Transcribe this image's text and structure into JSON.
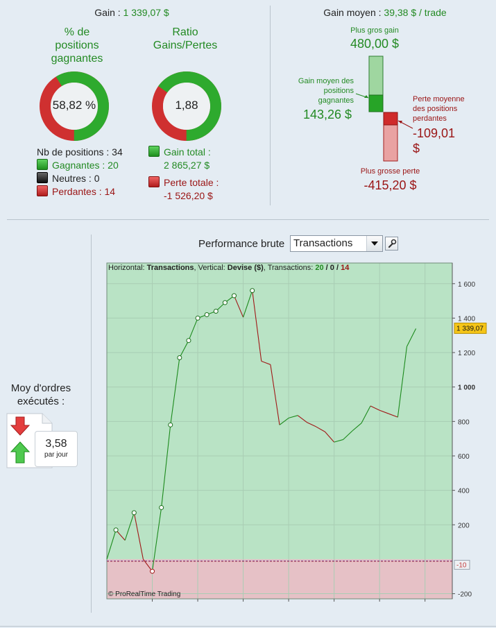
{
  "gain_label": "Gain : ",
  "gain_value": "1 339,07 $",
  "pct_title": "% de positions gagnantes",
  "pct_title_lines": [
    "% de",
    "positions",
    "gagnantes"
  ],
  "pct_value": "58,82 %",
  "pct_fraction": 0.5882,
  "ratio_title_lines": [
    "Ratio",
    "Gains/Pertes"
  ],
  "ratio_value": "1,88",
  "ratio_fraction": 0.652,
  "positions": {
    "total": "Nb de positions : 34",
    "winners": "Gagnantes : 20",
    "neutral": "Neutres : 0",
    "losers": "Perdantes : 14"
  },
  "totals": {
    "gain_label": "Gain total :",
    "gain_value": "2 865,27 $",
    "loss_label": "Perte totale :",
    "loss_value": "-1 526,20 $"
  },
  "avg": {
    "title_label": "Gain moyen : ",
    "title_value": "39,38 $ / trade",
    "max_gain_label": "Plus gros gain",
    "max_gain_value": "480,00 $",
    "avg_gain_label_lines": [
      "Gain moyen des",
      "positions",
      "gagnantes"
    ],
    "avg_gain_value": "143,26 $",
    "avg_loss_label_lines": [
      "Perte moyenne",
      "des positions",
      "perdantes"
    ],
    "avg_loss_value_lines": [
      "-109,01",
      "$"
    ],
    "max_loss_label": "Plus grosse perte",
    "max_loss_value": "-415,20 $"
  },
  "perf": {
    "title": "Performance brute",
    "select_value": "Transactions"
  },
  "moy": {
    "title_lines": [
      "Moy d'ordres",
      "exécutés :"
    ],
    "value": "3,58",
    "unit": "par jour"
  },
  "chart_header": {
    "h_label": "Horizontal: ",
    "h_value": "Transactions",
    "v_label": ", Vertical: ",
    "v_value": "Devise ($)",
    "t_label": ", Transactions: ",
    "t_win": "20",
    "t_sep1": " / ",
    "t_neutral": "0",
    "t_sep2": " / ",
    "t_loss": "14"
  },
  "chart_copyright": "© ProRealTime Trading",
  "colors": {
    "gain": "#238a23",
    "loss": "#9a1414",
    "plot_positive": "#b9e3c5",
    "plot_negative": "#e6c1c6",
    "last_value_badge": "#f5c518"
  },
  "chart_data": {
    "type": "line",
    "x": [
      0,
      1,
      2,
      3,
      4,
      5,
      6,
      7,
      8,
      9,
      10,
      11,
      12,
      13,
      14,
      15,
      16,
      17,
      18,
      19,
      20,
      21,
      22,
      23,
      24,
      25,
      26,
      27,
      28,
      29,
      30,
      31,
      32,
      33,
      34
    ],
    "y": [
      0,
      170,
      110,
      270,
      0,
      -70,
      300,
      780,
      1170,
      1270,
      1400,
      1420,
      1440,
      1490,
      1530,
      1405,
      1560,
      1150,
      1130,
      780,
      820,
      835,
      795,
      770,
      740,
      680,
      695,
      745,
      790,
      890,
      865,
      845,
      825,
      1235,
      1339.07
    ],
    "markers_upto": 16,
    "xlim": [
      0,
      38
    ],
    "ylim": [
      -230,
      1720
    ],
    "xticks": [
      5,
      10,
      15,
      20,
      25,
      30,
      35
    ],
    "yticks": [
      -200,
      200,
      400,
      600,
      800,
      1000,
      1200,
      1400,
      1600
    ],
    "ytick_labels": [
      "-200",
      "200",
      "400",
      "600",
      "800",
      "1 000",
      "1 200",
      "1 400",
      "1 600"
    ],
    "last_value_label": "1 339,07",
    "reference_label": "-10",
    "reference_y": -10
  }
}
